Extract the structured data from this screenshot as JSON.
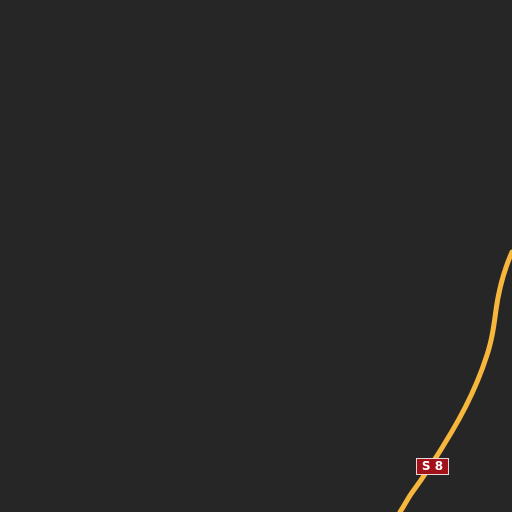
{
  "map": {
    "background_color": "#262626",
    "road": {
      "name": "S 8",
      "color": "#f6b73c",
      "shield": {
        "label": "S 8",
        "color": "#a3121b",
        "border_color": "#e9d7d7",
        "text_color": "#ffffff"
      }
    }
  }
}
